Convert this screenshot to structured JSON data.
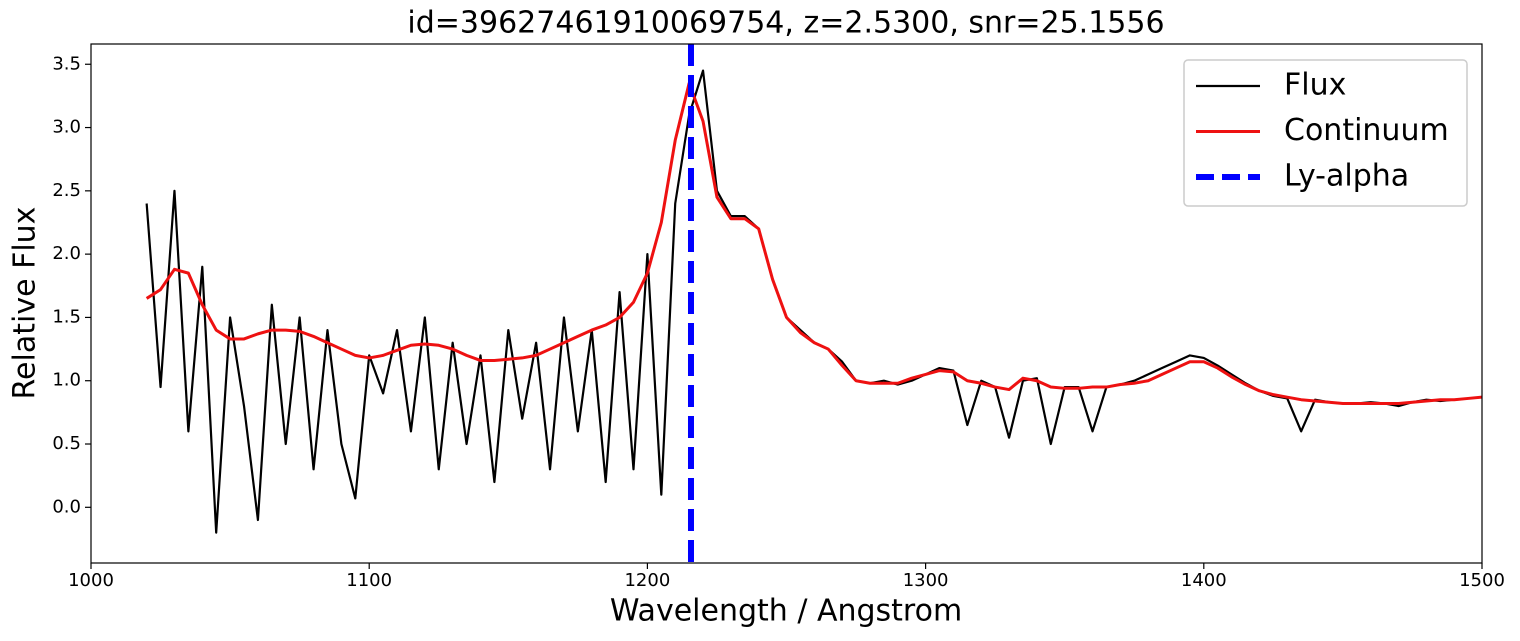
{
  "chart_data": {
    "type": "line",
    "title": "id=39627461910069754, z=2.5300, snr=25.1556",
    "xlabel": "Wavelength / Angstrom",
    "ylabel": "Relative Flux",
    "x": [
      1020,
      1025,
      1030,
      1035,
      1040,
      1045,
      1050,
      1055,
      1060,
      1065,
      1070,
      1075,
      1080,
      1085,
      1090,
      1095,
      1100,
      1105,
      1110,
      1115,
      1120,
      1125,
      1130,
      1135,
      1140,
      1145,
      1150,
      1155,
      1160,
      1165,
      1170,
      1175,
      1180,
      1185,
      1190,
      1195,
      1200,
      1205,
      1210,
      1215,
      1220,
      1225,
      1230,
      1235,
      1240,
      1245,
      1250,
      1255,
      1260,
      1265,
      1270,
      1275,
      1280,
      1285,
      1290,
      1295,
      1300,
      1305,
      1310,
      1315,
      1320,
      1325,
      1330,
      1335,
      1340,
      1345,
      1350,
      1355,
      1360,
      1365,
      1370,
      1375,
      1380,
      1385,
      1390,
      1395,
      1400,
      1405,
      1410,
      1415,
      1420,
      1425,
      1430,
      1435,
      1440,
      1445,
      1450,
      1455,
      1460,
      1465,
      1470,
      1475,
      1480,
      1485,
      1490,
      1495,
      1500
    ],
    "series": [
      {
        "name": "Flux",
        "color": "#000000",
        "width": 2.2,
        "values": [
          2.4,
          0.95,
          2.5,
          0.6,
          1.9,
          -0.2,
          1.5,
          0.8,
          -0.1,
          1.6,
          0.5,
          1.5,
          0.3,
          1.4,
          0.5,
          0.07,
          1.2,
          0.9,
          1.4,
          0.6,
          1.5,
          0.3,
          1.3,
          0.5,
          1.2,
          0.2,
          1.4,
          0.7,
          1.3,
          0.3,
          1.5,
          0.6,
          1.4,
          0.2,
          1.7,
          0.3,
          2.0,
          0.1,
          2.4,
          3.1,
          3.45,
          2.5,
          2.3,
          2.3,
          2.2,
          1.8,
          1.5,
          1.4,
          1.3,
          1.25,
          1.15,
          1.0,
          0.98,
          1.0,
          0.97,
          1.0,
          1.05,
          1.1,
          1.08,
          0.65,
          1.0,
          0.95,
          0.55,
          1.0,
          1.02,
          0.5,
          0.95,
          0.95,
          0.6,
          0.95,
          0.97,
          1.0,
          1.05,
          1.1,
          1.15,
          1.2,
          1.18,
          1.12,
          1.05,
          0.98,
          0.92,
          0.88,
          0.86,
          0.6,
          0.85,
          0.83,
          0.82,
          0.82,
          0.83,
          0.82,
          0.8,
          0.83,
          0.85,
          0.84,
          0.85,
          0.86,
          0.87
        ]
      },
      {
        "name": "Continuum",
        "color": "#ee1111",
        "width": 3,
        "values": [
          1.65,
          1.72,
          1.88,
          1.85,
          1.6,
          1.4,
          1.33,
          1.33,
          1.37,
          1.4,
          1.4,
          1.39,
          1.35,
          1.3,
          1.25,
          1.2,
          1.18,
          1.2,
          1.24,
          1.28,
          1.29,
          1.28,
          1.25,
          1.2,
          1.16,
          1.16,
          1.17,
          1.18,
          1.2,
          1.25,
          1.3,
          1.35,
          1.4,
          1.44,
          1.5,
          1.62,
          1.85,
          2.25,
          2.9,
          3.35,
          3.05,
          2.45,
          2.28,
          2.28,
          2.2,
          1.8,
          1.5,
          1.38,
          1.3,
          1.25,
          1.12,
          1.0,
          0.98,
          0.98,
          0.98,
          1.02,
          1.05,
          1.08,
          1.07,
          1.0,
          0.98,
          0.95,
          0.93,
          1.02,
          1.0,
          0.95,
          0.94,
          0.94,
          0.95,
          0.95,
          0.97,
          0.98,
          1.0,
          1.05,
          1.1,
          1.15,
          1.15,
          1.1,
          1.03,
          0.97,
          0.92,
          0.89,
          0.87,
          0.85,
          0.84,
          0.83,
          0.82,
          0.82,
          0.82,
          0.82,
          0.82,
          0.83,
          0.84,
          0.85,
          0.85,
          0.86,
          0.87
        ]
      }
    ],
    "reference_line": {
      "name": "Ly-alpha",
      "x": 1215.67,
      "color": "#0000ff"
    },
    "xlim": [
      1000,
      1500
    ],
    "xticks": [
      1000,
      1100,
      1200,
      1300,
      1400,
      1500
    ],
    "ylim": [
      -0.44,
      3.66
    ],
    "yticks": [
      {
        "value": 0,
        "label": "0.0"
      },
      0.5,
      {
        "value": 1,
        "label": "1.0"
      },
      1.5,
      {
        "value": 2,
        "label": "2.0"
      },
      2.5,
      {
        "value": 3,
        "label": "3.0"
      },
      3.5
    ],
    "legend": "upper right",
    "grid": false
  }
}
